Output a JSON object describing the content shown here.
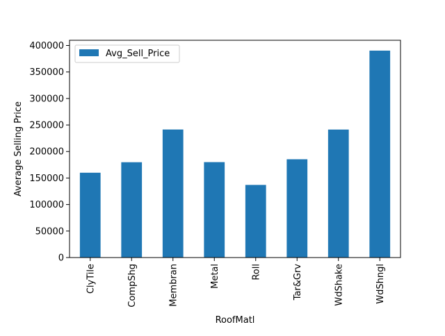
{
  "chart_data": {
    "type": "bar",
    "title": "",
    "xlabel": "RoofMatl",
    "ylabel": "Average Selling Price",
    "categories": [
      "ClyTile",
      "CompShg",
      "Membran",
      "Metal",
      "Roll",
      "Tar&Grv",
      "WdShake",
      "WdShngl"
    ],
    "series": [
      {
        "name": "Avg_Sell_Price",
        "color": "#1f77b4",
        "values": [
          160000,
          179800,
          241500,
          180000,
          137000,
          185400,
          241400,
          390300
        ]
      }
    ],
    "ylim": [
      0,
      409815
    ],
    "yticks": [
      0,
      50000,
      100000,
      150000,
      200000,
      250000,
      300000,
      350000,
      400000
    ],
    "ytick_labels": [
      "0",
      "50000",
      "100000",
      "150000",
      "200000",
      "250000",
      "300000",
      "350000",
      "400000"
    ],
    "grid": false,
    "legend": "top-left"
  }
}
